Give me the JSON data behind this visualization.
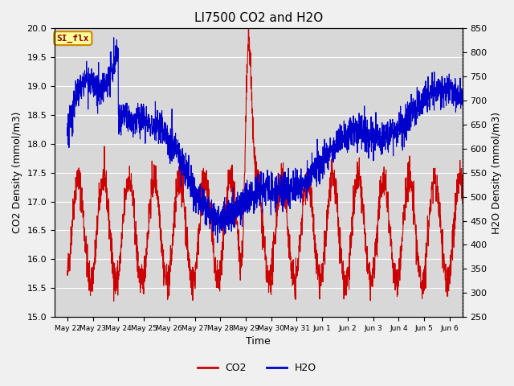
{
  "title": "LI7500 CO2 and H2O",
  "xlabel": "Time",
  "ylabel_left": "CO2 Density (mmol/m3)",
  "ylabel_right": "H2O Density (mmol/m3)",
  "ylim_left": [
    15.0,
    20.0
  ],
  "ylim_right": [
    250,
    850
  ],
  "yticks_left": [
    15.0,
    15.5,
    16.0,
    16.5,
    17.0,
    17.5,
    18.0,
    18.5,
    19.0,
    19.5,
    20.0
  ],
  "yticks_right": [
    250,
    300,
    350,
    400,
    450,
    500,
    550,
    600,
    650,
    700,
    750,
    800,
    850
  ],
  "xtick_labels": [
    "May 22",
    "May 23",
    "May 24",
    "May 25",
    "May 26",
    "May 27",
    "May 28",
    "May 29",
    "May 30",
    "May 31",
    "Jun 1",
    "Jun 2",
    "Jun 3",
    "Jun 4",
    "Jun 5",
    "Jun 6"
  ],
  "co2_color": "#cc0000",
  "h2o_color": "#0000cc",
  "fig_bg_color": "#f0f0f0",
  "plot_bg_color": "#d8d8d8",
  "annotation_text": "SI_flx",
  "annotation_bg": "#ffff99",
  "annotation_border": "#cc8800",
  "legend_co2": "CO2",
  "legend_h2o": "H2O",
  "n_days": 16,
  "pts_per_day": 144
}
